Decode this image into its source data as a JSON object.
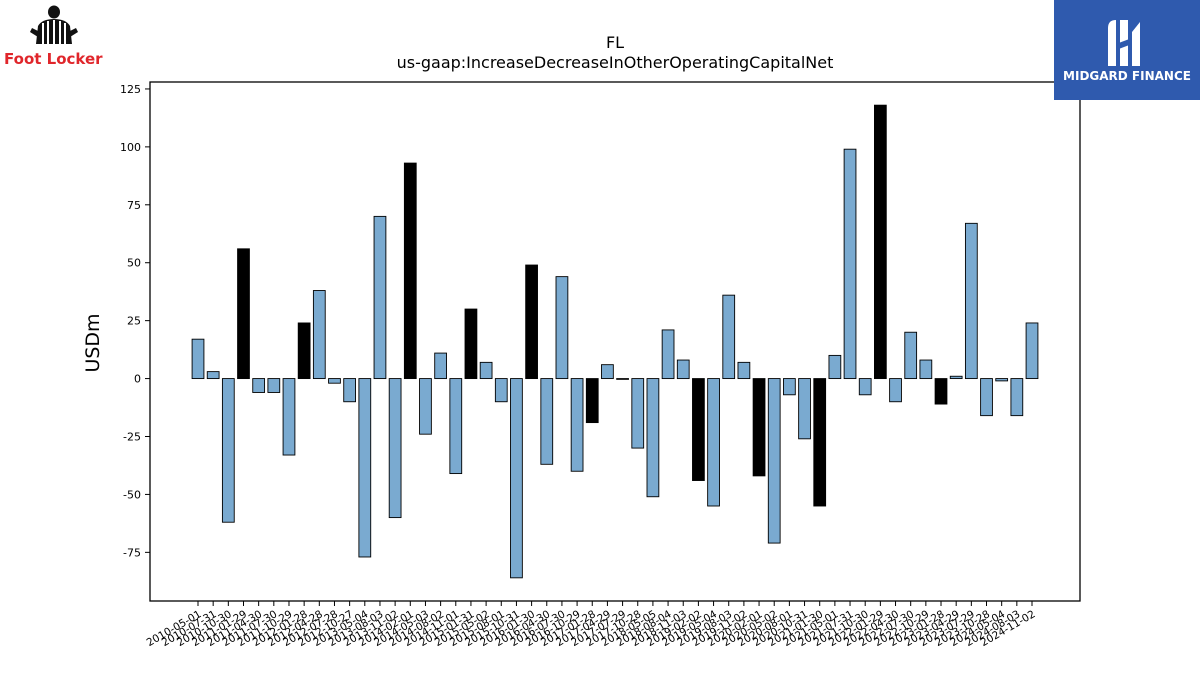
{
  "logos": {
    "left_brand": "Foot Locker",
    "right_brand": "MIDGARD FINANCE"
  },
  "colors": {
    "bar_default": "#7aaad0",
    "bar_highlight": "#000000",
    "left_brand_text": "#e0262b",
    "right_logo_bg": "#2f5aae"
  },
  "chart_data": {
    "type": "bar",
    "title": "FL",
    "subtitle": "us-gaap:IncreaseDecreaseInOtherOperatingCapitalNet",
    "xlabel": "",
    "ylabel": "USDm",
    "ylim": [
      -96,
      128
    ],
    "yticks": [
      -75,
      -50,
      -25,
      0,
      25,
      50,
      75,
      100,
      125
    ],
    "grid": false,
    "categories": [
      "2010-05-01",
      "2010-07-31",
      "2010-10-30",
      "2011-01-29",
      "2011-04-30",
      "2011-07-30",
      "2011-10-29",
      "2012-01-28",
      "2012-04-28",
      "2012-07-28",
      "2012-10-27",
      "2013-05-04",
      "2013-08-03",
      "2013-11-02",
      "2014-02-01",
      "2014-05-03",
      "2014-08-02",
      "2014-11-01",
      "2015-01-31",
      "2015-05-02",
      "2015-08-01",
      "2015-10-31",
      "2016-01-30",
      "2016-04-30",
      "2016-07-30",
      "2016-10-29",
      "2017-01-28",
      "2017-04-29",
      "2017-07-29",
      "2017-10-28",
      "2018-05-05",
      "2018-08-04",
      "2018-11-03",
      "2019-02-02",
      "2019-05-04",
      "2019-08-03",
      "2019-11-02",
      "2020-02-01",
      "2020-05-02",
      "2020-08-01",
      "2020-10-31",
      "2021-01-30",
      "2021-05-01",
      "2021-07-31",
      "2021-10-30",
      "2022-01-29",
      "2022-04-30",
      "2022-07-30",
      "2022-10-29",
      "2023-01-28",
      "2023-04-29",
      "2023-07-29",
      "2023-10-28",
      "2024-05-04",
      "2024-08-03",
      "2024-11-02"
    ],
    "values": [
      17,
      3,
      -62,
      56,
      -6,
      -6,
      -33,
      24,
      38,
      -2,
      -10,
      -77,
      70,
      -60,
      93,
      -24,
      11,
      -41,
      30,
      7,
      -10,
      -86,
      49,
      -37,
      44,
      -40,
      -19,
      6,
      0,
      -30,
      -51,
      21,
      8,
      -44,
      -55,
      36,
      7,
      -42,
      -71,
      -7,
      -26,
      -55,
      10,
      99,
      -7,
      118,
      -10,
      20,
      8,
      -11,
      1,
      67,
      -16,
      -1,
      -16,
      24
    ],
    "highlighted": [
      3,
      7,
      14,
      18,
      22,
      26,
      33,
      37,
      41,
      45,
      49
    ]
  }
}
